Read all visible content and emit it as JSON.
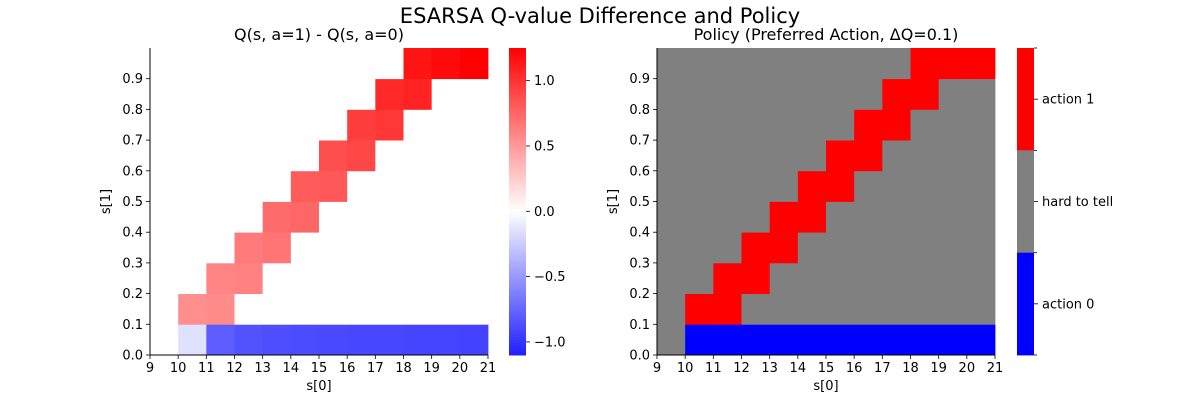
{
  "figure": {
    "suptitle": "ESARSA Q-value Difference and Policy"
  },
  "chart_data": [
    {
      "type": "heatmap",
      "title": "Q(s, a=1) - Q(s, a=0)",
      "xlabel": "s[0]",
      "ylabel": "s[1]",
      "xticks": [
        "9",
        "10",
        "11",
        "12",
        "13",
        "14",
        "15",
        "16",
        "17",
        "18",
        "19",
        "20",
        "21"
      ],
      "yticks": [
        "0.0",
        "0.1",
        "0.2",
        "0.3",
        "0.4",
        "0.5",
        "0.6",
        "0.7",
        "0.8",
        "0.9"
      ],
      "x_cells": [
        9,
        10,
        11,
        12,
        13,
        14,
        15,
        16,
        17,
        18,
        19,
        20
      ],
      "y_cells": [
        0.0,
        0.1,
        0.2,
        0.3,
        0.4,
        0.5,
        0.6,
        0.7,
        0.8,
        0.9
      ],
      "xlim": [
        9,
        21
      ],
      "ylim": [
        0,
        1
      ],
      "colormap": "bwr",
      "vmin": -1.1,
      "vmax": 1.25,
      "colorbar_ticks": [
        "1.0",
        "0.5",
        "0.0",
        "−0.5",
        "−1.0"
      ],
      "colorbar_tick_values": [
        1.0,
        0.5,
        0.0,
        -0.5,
        -1.0
      ],
      "values": [
        [
          0,
          -0.15,
          -0.8,
          -0.85,
          -0.87,
          -0.88,
          -0.89,
          -0.9,
          -0.9,
          -0.91,
          -0.91,
          -0.92
        ],
        [
          0,
          0.55,
          0.57,
          0,
          0,
          0,
          0,
          0,
          0,
          0,
          0,
          0
        ],
        [
          0,
          0,
          0.6,
          0.62,
          0,
          0,
          0,
          0,
          0,
          0,
          0,
          0
        ],
        [
          0,
          0,
          0,
          0.65,
          0.68,
          0,
          0,
          0,
          0,
          0,
          0,
          0
        ],
        [
          0,
          0,
          0,
          0,
          0.72,
          0.75,
          0,
          0,
          0,
          0,
          0,
          0
        ],
        [
          0,
          0,
          0,
          0,
          0,
          0.8,
          0.82,
          0,
          0,
          0,
          0,
          0
        ],
        [
          0,
          0,
          0,
          0,
          0,
          0,
          0.87,
          0.9,
          0,
          0,
          0,
          0
        ],
        [
          0,
          0,
          0,
          0,
          0,
          0,
          0,
          0.95,
          0.98,
          0,
          0,
          0
        ],
        [
          0,
          0,
          0,
          0,
          0,
          0,
          0,
          0,
          1.05,
          1.08,
          0,
          0
        ],
        [
          0,
          0,
          0,
          0,
          0,
          0,
          0,
          0,
          0,
          1.15,
          1.2,
          1.25
        ]
      ]
    },
    {
      "type": "heatmap",
      "title": "Policy (Preferred Action, ΔQ=0.1)",
      "xlabel": "s[0]",
      "ylabel": "s[1]",
      "xticks": [
        "9",
        "10",
        "11",
        "12",
        "13",
        "14",
        "15",
        "16",
        "17",
        "18",
        "19",
        "20",
        "21"
      ],
      "yticks": [
        "0.0",
        "0.1",
        "0.2",
        "0.3",
        "0.4",
        "0.5",
        "0.6",
        "0.7",
        "0.8",
        "0.9"
      ],
      "x_cells": [
        9,
        10,
        11,
        12,
        13,
        14,
        15,
        16,
        17,
        18,
        19,
        20
      ],
      "y_cells": [
        0.0,
        0.1,
        0.2,
        0.3,
        0.4,
        0.5,
        0.6,
        0.7,
        0.8,
        0.9
      ],
      "xlim": [
        9,
        21
      ],
      "ylim": [
        0,
        1
      ],
      "categories": [
        {
          "code": 0,
          "label": "action 0",
          "color": "#0000ff"
        },
        {
          "code": 0.5,
          "label": "hard to tell",
          "color": "#808080"
        },
        {
          "code": 1,
          "label": "action 1",
          "color": "#ff0000"
        }
      ],
      "colorbar_labels": [
        "action 1",
        "hard to tell",
        "action 0"
      ],
      "values": [
        [
          0.5,
          0,
          0,
          0,
          0,
          0,
          0,
          0,
          0,
          0,
          0,
          0
        ],
        [
          0.5,
          1,
          1,
          0.5,
          0.5,
          0.5,
          0.5,
          0.5,
          0.5,
          0.5,
          0.5,
          0.5
        ],
        [
          0.5,
          0.5,
          1,
          1,
          0.5,
          0.5,
          0.5,
          0.5,
          0.5,
          0.5,
          0.5,
          0.5
        ],
        [
          0.5,
          0.5,
          0.5,
          1,
          1,
          0.5,
          0.5,
          0.5,
          0.5,
          0.5,
          0.5,
          0.5
        ],
        [
          0.5,
          0.5,
          0.5,
          0.5,
          1,
          1,
          0.5,
          0.5,
          0.5,
          0.5,
          0.5,
          0.5
        ],
        [
          0.5,
          0.5,
          0.5,
          0.5,
          0.5,
          1,
          1,
          0.5,
          0.5,
          0.5,
          0.5,
          0.5
        ],
        [
          0.5,
          0.5,
          0.5,
          0.5,
          0.5,
          0.5,
          1,
          1,
          0.5,
          0.5,
          0.5,
          0.5
        ],
        [
          0.5,
          0.5,
          0.5,
          0.5,
          0.5,
          0.5,
          0.5,
          1,
          1,
          0.5,
          0.5,
          0.5
        ],
        [
          0.5,
          0.5,
          0.5,
          0.5,
          0.5,
          0.5,
          0.5,
          0.5,
          1,
          1,
          0.5,
          0.5
        ],
        [
          0.5,
          0.5,
          0.5,
          0.5,
          0.5,
          0.5,
          0.5,
          0.5,
          0.5,
          1,
          1,
          1
        ]
      ]
    }
  ]
}
